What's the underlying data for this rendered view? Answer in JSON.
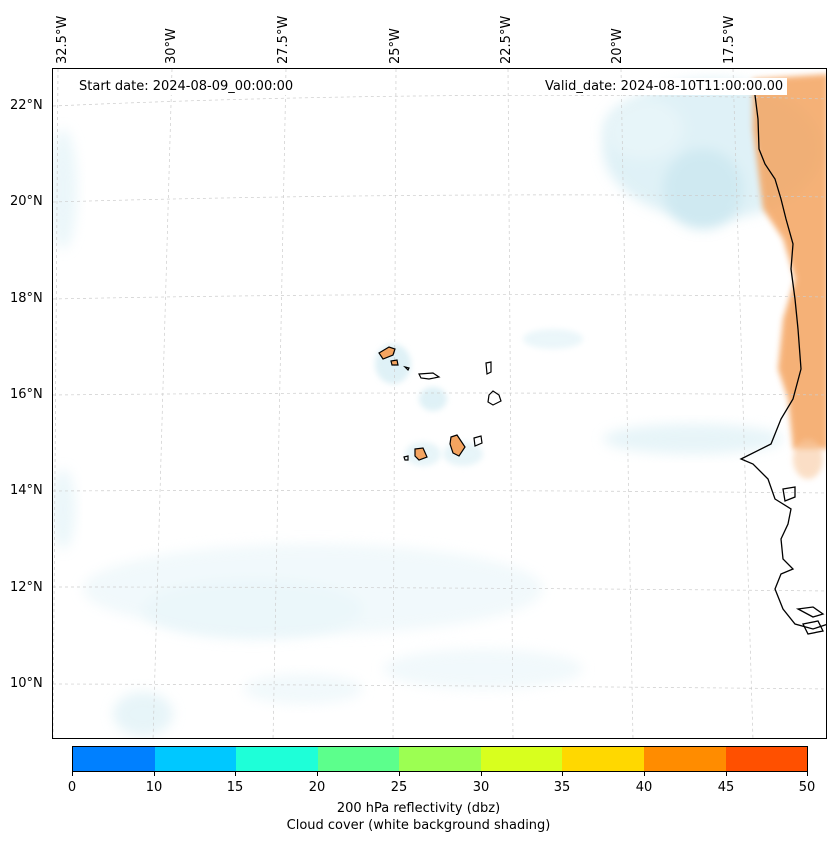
{
  "map": {
    "start_date": "Start date: 2024-08-09_00:00:00",
    "valid_date": "Valid_date: 2024-08-10T11:00:00.00",
    "lon_labels": [
      "32.5°W",
      "30°W",
      "27.5°W",
      "25°W",
      "22.5°W",
      "20°W",
      "17.5°W"
    ],
    "lat_labels": [
      "22°N",
      "20°N",
      "18°N",
      "16°N",
      "14°N",
      "12°N",
      "10°N"
    ]
  },
  "colorbar": {
    "ticks": [
      "0",
      "10",
      "15",
      "20",
      "25",
      "30",
      "35",
      "40",
      "45",
      "50"
    ],
    "colors": [
      "#0080ff",
      "#00c8ff",
      "#1effd8",
      "#5cff8c",
      "#9cff52",
      "#d8ff1e",
      "#ffd800",
      "#ff8c00",
      "#ff5000"
    ],
    "label_line1": "200 hPa reflectivity (dbz)",
    "label_line2": "Cloud cover (white background shading)"
  },
  "colors": {
    "cloud": "#a8d8e6",
    "land_warm": "#f4a460",
    "coast": "#000000",
    "grid": "#cccccc"
  }
}
